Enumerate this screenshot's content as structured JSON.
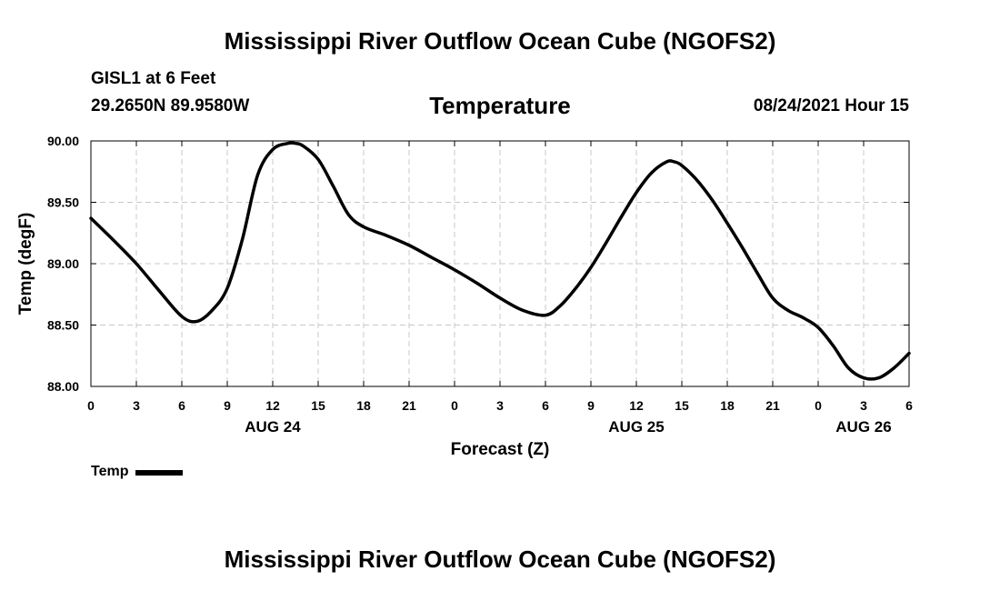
{
  "header": {
    "title": "Mississippi River Outflow Ocean Cube (NGOFS2)",
    "station": "GISL1 at 6 Feet",
    "coords": "29.2650N  89.9580W",
    "datetime": "08/24/2021 Hour 15"
  },
  "footer": {
    "title": "Mississippi River Outflow Ocean Cube (NGOFS2)"
  },
  "chart_data": {
    "type": "line",
    "title": "Temperature",
    "xlabel": "Forecast (Z)",
    "ylabel": "Temp (degF)",
    "xlim": [
      0,
      54
    ],
    "ylim": [
      88.0,
      90.0
    ],
    "grid": true,
    "x_ticks": [
      0,
      3,
      6,
      9,
      12,
      15,
      18,
      21,
      24,
      27,
      30,
      33,
      36,
      39,
      42,
      45,
      48,
      51,
      54
    ],
    "x_tick_labels": [
      "0",
      "3",
      "6",
      "9",
      "12",
      "15",
      "18",
      "21",
      "0",
      "3",
      "6",
      "9",
      "12",
      "15",
      "18",
      "21",
      "0",
      "3",
      "6"
    ],
    "y_ticks": [
      88.0,
      88.5,
      89.0,
      89.5,
      90.0
    ],
    "y_tick_labels": [
      "88.00",
      "88.50",
      "89.00",
      "89.50",
      "90.00"
    ],
    "day_labels": [
      {
        "x": 12,
        "label": "AUG 24"
      },
      {
        "x": 36,
        "label": "AUG 25"
      },
      {
        "x": 51,
        "label": "AUG 26"
      }
    ],
    "legend": {
      "position": "bottom-left",
      "entries": [
        "Temp"
      ]
    },
    "series": [
      {
        "name": "Temp",
        "color": "#000000",
        "x": [
          0,
          1.5,
          3,
          4.5,
          6,
          7,
          8,
          9,
          10,
          11,
          12,
          13,
          13.5,
          14,
          15,
          16,
          17,
          18,
          19.5,
          21,
          22.5,
          24,
          25.5,
          27,
          28.5,
          30,
          31,
          32,
          33,
          34,
          35,
          36,
          37,
          38,
          38.5,
          39,
          40,
          41,
          42,
          43,
          44,
          45,
          46,
          47,
          48,
          49,
          50,
          51,
          52,
          53,
          54
        ],
        "values": [
          89.37,
          89.19,
          89.0,
          88.78,
          88.57,
          88.53,
          88.62,
          88.8,
          89.2,
          89.72,
          89.93,
          89.98,
          89.98,
          89.96,
          89.85,
          89.63,
          89.4,
          89.3,
          89.23,
          89.15,
          89.05,
          88.95,
          88.84,
          88.72,
          88.62,
          88.58,
          88.66,
          88.8,
          88.97,
          89.17,
          89.38,
          89.58,
          89.74,
          89.83,
          89.83,
          89.8,
          89.68,
          89.52,
          89.33,
          89.13,
          88.92,
          88.72,
          88.62,
          88.56,
          88.48,
          88.33,
          88.15,
          88.07,
          88.07,
          88.15,
          88.27
        ]
      }
    ]
  }
}
